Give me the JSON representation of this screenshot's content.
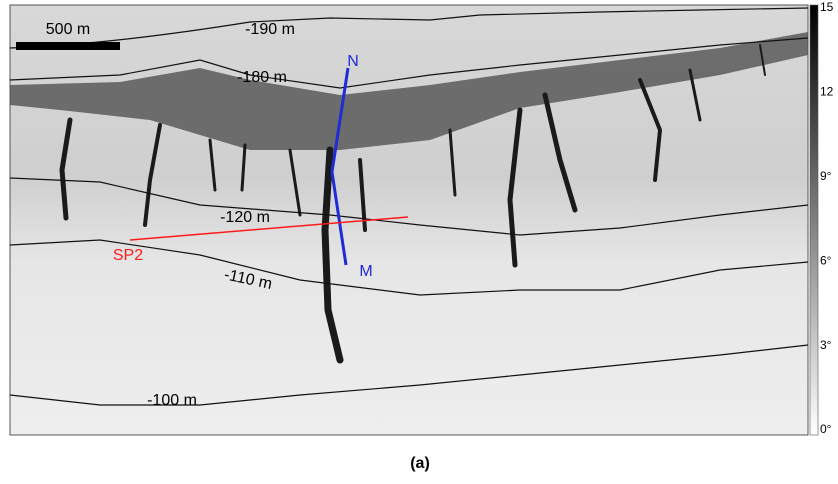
{
  "map": {
    "scale_bar": "500 m",
    "contours": [
      "-190 m",
      "-180 m",
      "-120 m",
      "-110 m",
      "-100 m"
    ],
    "profile_line_blue": {
      "start": "N",
      "end": "M"
    },
    "profile_line_red": "SP2"
  },
  "colorbar": {
    "labels": [
      "15",
      "12",
      "9°",
      "6°",
      "3°",
      "0°"
    ]
  },
  "caption": "(a)"
}
